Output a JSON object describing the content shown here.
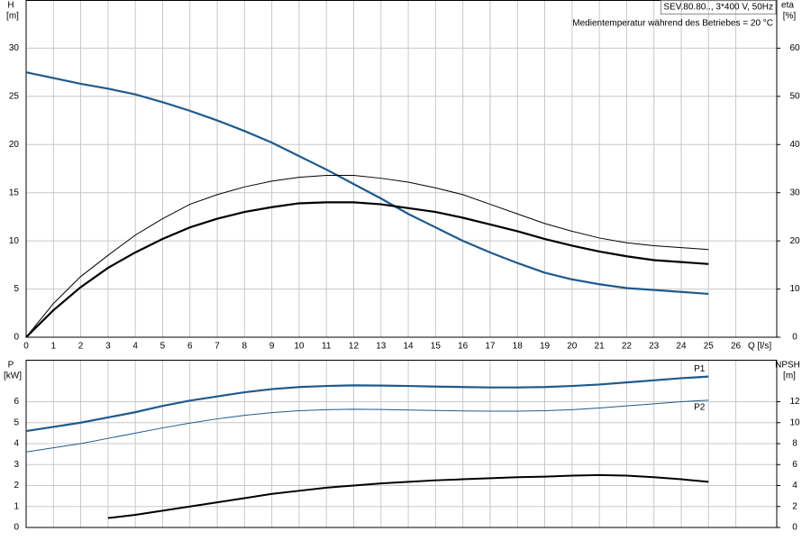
{
  "chart_data": [
    {
      "type": "line",
      "y_label": "H",
      "y_unit": "[m]",
      "y2_label": "eta",
      "y2_unit": "[%]",
      "x_label": "Q [l/s]",
      "annotations": [
        "SEV.80.80.., 3*400 V, 50Hz",
        "Medientemperatur während des Betriebes = 20 °C"
      ],
      "x": [
        0,
        1,
        2,
        3,
        4,
        5,
        6,
        7,
        8,
        9,
        10,
        11,
        12,
        13,
        14,
        15,
        16,
        17,
        18,
        19,
        20,
        21,
        22,
        23,
        24,
        25
      ],
      "xlim": [
        0,
        27.5
      ],
      "xticks": [
        0,
        1,
        2,
        3,
        4,
        5,
        6,
        7,
        8,
        9,
        10,
        11,
        12,
        13,
        14,
        15,
        16,
        17,
        18,
        19,
        20,
        21,
        22,
        23,
        24,
        25,
        26
      ],
      "ylim": [
        0,
        35
      ],
      "yticks": [
        0,
        5,
        10,
        15,
        20,
        25,
        30
      ],
      "y2lim": [
        0,
        70
      ],
      "y2ticks": [
        0,
        10,
        20,
        30,
        40,
        50,
        60
      ],
      "grid": true,
      "series": [
        {
          "color": "#1f5a8c",
          "width": 2.2,
          "values": [
            27.5,
            26.9,
            26.3,
            25.8,
            25.2,
            24.4,
            23.5,
            22.5,
            21.4,
            20.2,
            18.8,
            17.4,
            15.9,
            14.4,
            12.8,
            11.4,
            10.0,
            8.8,
            7.7,
            6.7,
            6.0,
            5.5,
            5.1,
            4.9,
            4.7,
            4.5
          ]
        },
        {
          "color": "#000000",
          "width": 1,
          "axis": "y2",
          "values": [
            0,
            7,
            12.6,
            17,
            21.2,
            24.6,
            27.6,
            29.6,
            31.2,
            32.4,
            33.2,
            33.6,
            33.6,
            33,
            32.2,
            31,
            29.6,
            27.6,
            25.6,
            23.6,
            22,
            20.6,
            19.6,
            19,
            18.6,
            18.2
          ]
        },
        {
          "color": "#000000",
          "width": 2.2,
          "axis": "y2",
          "values": [
            0,
            5.6,
            10.4,
            14.4,
            17.6,
            20.4,
            22.8,
            24.6,
            26,
            27,
            27.8,
            28,
            28,
            27.6,
            26.8,
            26,
            24.8,
            23.4,
            22,
            20.4,
            19,
            17.8,
            16.8,
            16,
            15.6,
            15.2
          ]
        }
      ]
    },
    {
      "type": "line",
      "y_label": "P",
      "y_unit": "[kW]",
      "y2_label": "NPSH",
      "y2_unit": "[m]",
      "x": [
        0,
        1,
        2,
        3,
        4,
        5,
        6,
        7,
        8,
        9,
        10,
        11,
        12,
        13,
        14,
        15,
        16,
        17,
        18,
        19,
        20,
        21,
        22,
        23,
        24,
        25
      ],
      "xlim": [
        0,
        27.5
      ],
      "ylim": [
        0,
        8
      ],
      "yticks": [
        0,
        1,
        2,
        3,
        4,
        5,
        6
      ],
      "y2lim": [
        0,
        16
      ],
      "y2ticks": [
        0,
        2,
        4,
        6,
        8,
        10,
        12
      ],
      "grid": true,
      "series": [
        {
          "name": "P1",
          "color": "#1f5a8c",
          "width": 2.2,
          "values": [
            4.6,
            4.8,
            5.0,
            5.25,
            5.5,
            5.8,
            6.05,
            6.25,
            6.45,
            6.6,
            6.7,
            6.75,
            6.78,
            6.77,
            6.75,
            6.72,
            6.7,
            6.68,
            6.68,
            6.7,
            6.75,
            6.82,
            6.92,
            7.02,
            7.12,
            7.2
          ]
        },
        {
          "name": "P2",
          "color": "#1f5a8c",
          "width": 1,
          "values": [
            3.6,
            3.8,
            4.0,
            4.25,
            4.5,
            4.75,
            4.98,
            5.18,
            5.35,
            5.48,
            5.57,
            5.62,
            5.64,
            5.63,
            5.6,
            5.58,
            5.56,
            5.55,
            5.55,
            5.57,
            5.62,
            5.7,
            5.8,
            5.9,
            6.0,
            6.07
          ]
        },
        {
          "color": "#000000",
          "width": 2,
          "axis": "y2",
          "values": [
            null,
            null,
            null,
            0.9,
            1.2,
            1.6,
            2.0,
            2.4,
            2.8,
            3.2,
            3.5,
            3.8,
            4.0,
            4.2,
            4.35,
            4.5,
            4.6,
            4.7,
            4.8,
            4.85,
            4.95,
            5.0,
            4.95,
            4.8,
            4.6,
            4.35
          ]
        }
      ]
    }
  ]
}
